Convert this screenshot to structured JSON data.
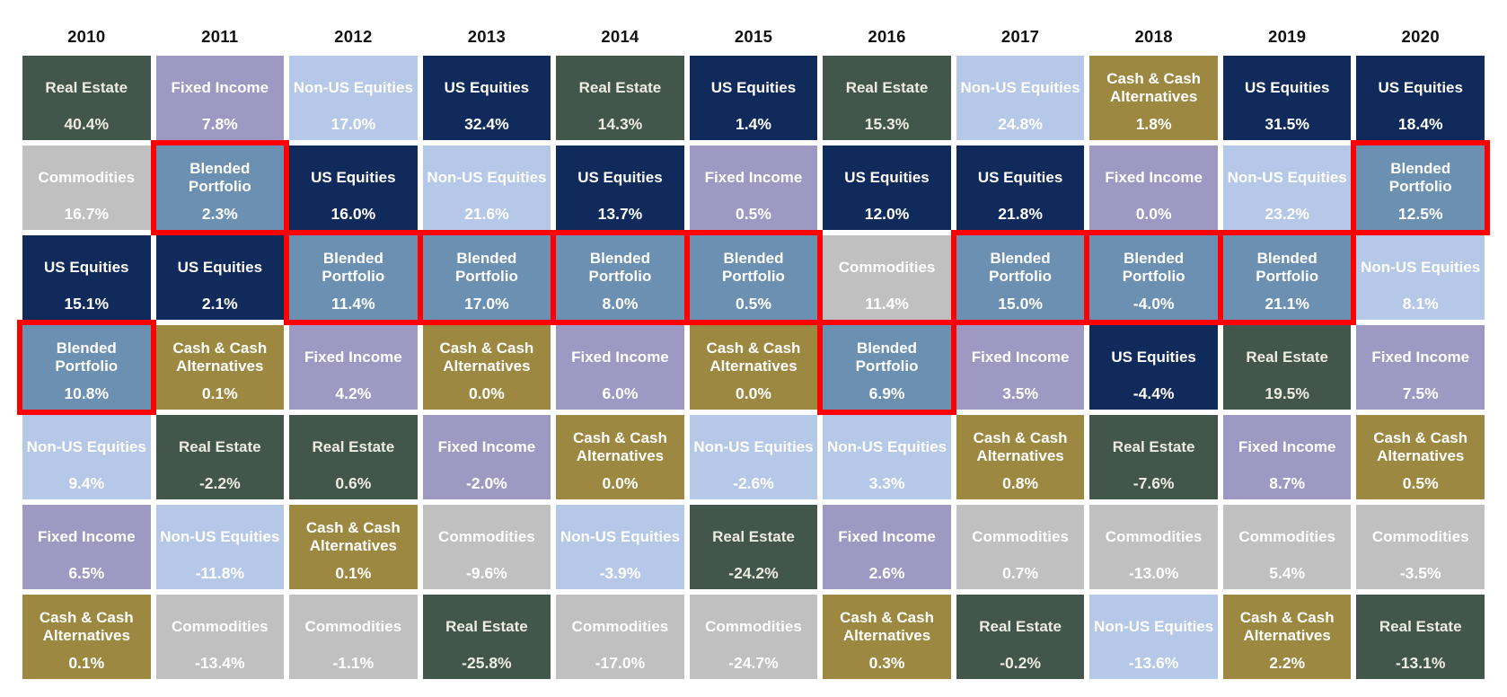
{
  "chart_data": {
    "type": "table",
    "title": "",
    "categories": [
      "2010",
      "2011",
      "2012",
      "2013",
      "2014",
      "2015",
      "2016",
      "2017",
      "2018",
      "2019",
      "2020"
    ],
    "highlight_border_color": "#FF0000",
    "asset_colors": {
      "Real Estate": {
        "bg": "#42564C",
        "text": "#EDECE0"
      },
      "Fixed Income": {
        "bg": "#9D99C3",
        "text": "#FFFFFF"
      },
      "Non-US Equities": {
        "bg": "#B6C8E8",
        "text": "#FFFFFF"
      },
      "US Equities": {
        "bg": "#112A5C",
        "text": "#FFFFFF"
      },
      "Commodities": {
        "bg": "#C0C0C0",
        "text": "#FFFFFF"
      },
      "Cash & Cash Alternatives": {
        "bg": "#9C8840",
        "text": "#FFFFFF"
      },
      "Blended Portfolio": {
        "bg": "#6C90B2",
        "text": "#FFFFFF"
      }
    },
    "years": [
      {
        "year": "2010",
        "cells": [
          {
            "asset": "Real Estate",
            "value": "40.4%",
            "highlighted": false
          },
          {
            "asset": "Commodities",
            "value": "16.7%",
            "highlighted": false
          },
          {
            "asset": "US Equities",
            "value": "15.1%",
            "highlighted": false
          },
          {
            "asset": "Blended Portfolio",
            "value": "10.8%",
            "highlighted": true
          },
          {
            "asset": "Non-US Equities",
            "value": "9.4%",
            "highlighted": false
          },
          {
            "asset": "Fixed Income",
            "value": "6.5%",
            "highlighted": false
          },
          {
            "asset": "Cash & Cash Alternatives",
            "value": "0.1%",
            "highlighted": false
          }
        ]
      },
      {
        "year": "2011",
        "cells": [
          {
            "asset": "Fixed Income",
            "value": "7.8%",
            "highlighted": false
          },
          {
            "asset": "Blended Portfolio",
            "value": "2.3%",
            "highlighted": true
          },
          {
            "asset": "US Equities",
            "value": "2.1%",
            "highlighted": false
          },
          {
            "asset": "Cash & Cash Alternatives",
            "value": "0.1%",
            "highlighted": false
          },
          {
            "asset": "Real Estate",
            "value": "-2.2%",
            "highlighted": false
          },
          {
            "asset": "Non-US Equities",
            "value": "-11.8%",
            "highlighted": false
          },
          {
            "asset": "Commodities",
            "value": "-13.4%",
            "highlighted": false
          }
        ]
      },
      {
        "year": "2012",
        "cells": [
          {
            "asset": "Non-US Equities",
            "value": "17.0%",
            "highlighted": false
          },
          {
            "asset": "US Equities",
            "value": "16.0%",
            "highlighted": false
          },
          {
            "asset": "Blended Portfolio",
            "value": "11.4%",
            "highlighted": true
          },
          {
            "asset": "Fixed Income",
            "value": "4.2%",
            "highlighted": false
          },
          {
            "asset": "Real Estate",
            "value": "0.6%",
            "highlighted": false
          },
          {
            "asset": "Cash & Cash Alternatives",
            "value": "0.1%",
            "highlighted": false
          },
          {
            "asset": "Commodities",
            "value": "-1.1%",
            "highlighted": false
          }
        ]
      },
      {
        "year": "2013",
        "cells": [
          {
            "asset": "US Equities",
            "value": "32.4%",
            "highlighted": false
          },
          {
            "asset": "Non-US Equities",
            "value": "21.6%",
            "highlighted": false
          },
          {
            "asset": "Blended Portfolio",
            "value": "17.0%",
            "highlighted": true
          },
          {
            "asset": "Cash & Cash Alternatives",
            "value": "0.0%",
            "highlighted": false
          },
          {
            "asset": "Fixed Income",
            "value": "-2.0%",
            "highlighted": false
          },
          {
            "asset": "Commodities",
            "value": "-9.6%",
            "highlighted": false
          },
          {
            "asset": "Real Estate",
            "value": "-25.8%",
            "highlighted": false
          }
        ]
      },
      {
        "year": "2014",
        "cells": [
          {
            "asset": "Real Estate",
            "value": "14.3%",
            "highlighted": false
          },
          {
            "asset": "US Equities",
            "value": "13.7%",
            "highlighted": false
          },
          {
            "asset": "Blended Portfolio",
            "value": "8.0%",
            "highlighted": true
          },
          {
            "asset": "Fixed Income",
            "value": "6.0%",
            "highlighted": false
          },
          {
            "asset": "Cash & Cash Alternatives",
            "value": "0.0%",
            "highlighted": false
          },
          {
            "asset": "Non-US Equities",
            "value": "-3.9%",
            "highlighted": false
          },
          {
            "asset": "Commodities",
            "value": "-17.0%",
            "highlighted": false
          }
        ]
      },
      {
        "year": "2015",
        "cells": [
          {
            "asset": "US Equities",
            "value": "1.4%",
            "highlighted": false
          },
          {
            "asset": "Fixed Income",
            "value": "0.5%",
            "highlighted": false
          },
          {
            "asset": "Blended Portfolio",
            "value": "0.5%",
            "highlighted": true
          },
          {
            "asset": "Cash & Cash Alternatives",
            "value": "0.0%",
            "highlighted": false
          },
          {
            "asset": "Non-US Equities",
            "value": "-2.6%",
            "highlighted": false
          },
          {
            "asset": "Real Estate",
            "value": "-24.2%",
            "highlighted": false
          },
          {
            "asset": "Commodities",
            "value": "-24.7%",
            "highlighted": false
          }
        ]
      },
      {
        "year": "2016",
        "cells": [
          {
            "asset": "Real Estate",
            "value": "15.3%",
            "highlighted": false
          },
          {
            "asset": "US Equities",
            "value": "12.0%",
            "highlighted": false
          },
          {
            "asset": "Commodities",
            "value": "11.4%",
            "highlighted": false
          },
          {
            "asset": "Blended Portfolio",
            "value": "6.9%",
            "highlighted": true
          },
          {
            "asset": "Non-US Equities",
            "value": "3.3%",
            "highlighted": false
          },
          {
            "asset": "Fixed Income",
            "value": "2.6%",
            "highlighted": false
          },
          {
            "asset": "Cash & Cash Alternatives",
            "value": "0.3%",
            "highlighted": false
          }
        ]
      },
      {
        "year": "2017",
        "cells": [
          {
            "asset": "Non-US Equities",
            "value": "24.8%",
            "highlighted": false
          },
          {
            "asset": "US Equities",
            "value": "21.8%",
            "highlighted": false
          },
          {
            "asset": "Blended Portfolio",
            "value": "15.0%",
            "highlighted": true
          },
          {
            "asset": "Fixed Income",
            "value": "3.5%",
            "highlighted": false
          },
          {
            "asset": "Cash & Cash Alternatives",
            "value": "0.8%",
            "highlighted": false
          },
          {
            "asset": "Commodities",
            "value": "0.7%",
            "highlighted": false
          },
          {
            "asset": "Real Estate",
            "value": "-0.2%",
            "highlighted": false
          }
        ]
      },
      {
        "year": "2018",
        "cells": [
          {
            "asset": "Cash & Cash Alternatives",
            "value": "1.8%",
            "highlighted": false
          },
          {
            "asset": "Fixed Income",
            "value": "0.0%",
            "highlighted": false
          },
          {
            "asset": "Blended Portfolio",
            "value": "-4.0%",
            "highlighted": true
          },
          {
            "asset": "US Equities",
            "value": "-4.4%",
            "highlighted": false
          },
          {
            "asset": "Real Estate",
            "value": "-7.6%",
            "highlighted": false
          },
          {
            "asset": "Commodities",
            "value": "-13.0%",
            "highlighted": false
          },
          {
            "asset": "Non-US Equities",
            "value": "-13.6%",
            "highlighted": false
          }
        ]
      },
      {
        "year": "2019",
        "cells": [
          {
            "asset": "US Equities",
            "value": "31.5%",
            "highlighted": false
          },
          {
            "asset": "Non-US Equities",
            "value": "23.2%",
            "highlighted": false
          },
          {
            "asset": "Blended Portfolio",
            "value": "21.1%",
            "highlighted": true
          },
          {
            "asset": "Real Estate",
            "value": "19.5%",
            "highlighted": false
          },
          {
            "asset": "Fixed Income",
            "value": "8.7%",
            "highlighted": false
          },
          {
            "asset": "Commodities",
            "value": "5.4%",
            "highlighted": false
          },
          {
            "asset": "Cash & Cash Alternatives",
            "value": "2.2%",
            "highlighted": false
          }
        ]
      },
      {
        "year": "2020",
        "cells": [
          {
            "asset": "US Equities",
            "value": "18.4%",
            "highlighted": false
          },
          {
            "asset": "Blended Portfolio",
            "value": "12.5%",
            "highlighted": true
          },
          {
            "asset": "Non-US Equities",
            "value": "8.1%",
            "highlighted": false
          },
          {
            "asset": "Fixed Income",
            "value": "7.5%",
            "highlighted": false
          },
          {
            "asset": "Cash & Cash Alternatives",
            "value": "0.5%",
            "highlighted": false
          },
          {
            "asset": "Commodities",
            "value": "-3.5%",
            "highlighted": false
          },
          {
            "asset": "Real Estate",
            "value": "-13.1%",
            "highlighted": false
          }
        ]
      }
    ]
  }
}
